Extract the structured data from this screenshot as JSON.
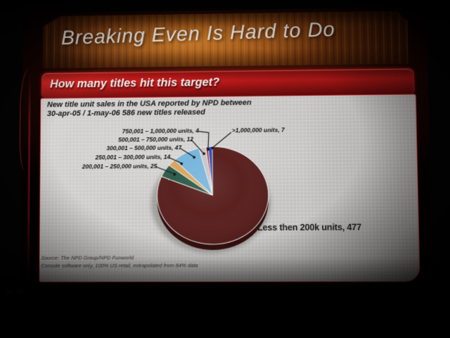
{
  "slide": {
    "title": "Breaking Even Is Hard to Do",
    "header_question": "How many titles hit this target?",
    "body": {
      "line1": "New title unit sales in the USA reported by NPD between",
      "line2": "30-apr-05 / 1-may-06 586 new titles released"
    },
    "footnotes": {
      "line1": "Source: The NPD Group/NPD Funworld",
      "line2": "Console software only, 100% US retail, extrapolated from 84% data"
    }
  },
  "chart_data": {
    "type": "pie",
    "title": "",
    "total_titles": 586,
    "direction": "clockwise",
    "start_angle_deg": 0,
    "legend_position": "none",
    "label_style": "callouts with leader lines, format: label, value",
    "slices": [
      {
        "label": "Less then 200k units",
        "value": 477,
        "display": "Less then 200k units, 477",
        "color": "#5a211f"
      },
      {
        "label": "200,001 – 250,000 units",
        "value": 25,
        "display": "200,001 – 250,000 units, 25",
        "color": "#2f5d4c"
      },
      {
        "label": "250,001 – 300,000 units",
        "value": 14,
        "display": "250,001 – 300,000 units, 14",
        "color": "#dca55f"
      },
      {
        "label": "300,001 – 500,000 units",
        "value": 47,
        "display": "300,001 – 500,000 units, 47",
        "color": "#79b6dc"
      },
      {
        "label": "500,001 – 750,000 units",
        "value": 12,
        "display": "500,001 – 750,000 units, 12",
        "color": "#c6c5c7"
      },
      {
        "label": "750,001 – 1,000,000 units",
        "value": 4,
        "display": "750,001 – 1,000,000 units, 4",
        "color": "#b92222"
      },
      {
        "label": ">1,000,000 units",
        "value": 7,
        "display": ">1,000,000 units, 7",
        "color": "#2c4ec2"
      }
    ],
    "colors": {
      "header_bar_red": "#c01717",
      "banner_orange": "#9c5317",
      "panel_gray": "#c9c8c6",
      "pie_rim_dark": "#340f0d"
    }
  }
}
